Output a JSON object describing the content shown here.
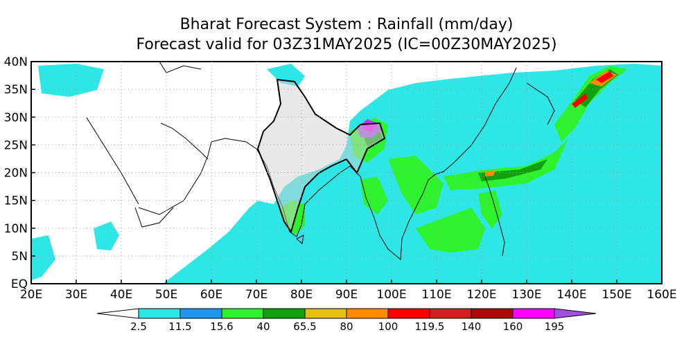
{
  "title": {
    "line1": "Bharat Forecast System : Rainfall (mm/day)",
    "line2": "Forecast valid for 03Z31MAY2025 (IC=00Z30MAY2025)"
  },
  "map": {
    "lon_range": [
      20,
      160
    ],
    "lat_range": [
      0,
      40
    ],
    "lon_ticks": [
      "20E",
      "30E",
      "40E",
      "50E",
      "60E",
      "70E",
      "80E",
      "90E",
      "100E",
      "110E",
      "120E",
      "130E",
      "140E",
      "150E",
      "160E"
    ],
    "lat_ticks": [
      "EQ",
      "5N",
      "10N",
      "15N",
      "20N",
      "25N",
      "30N",
      "35N",
      "40N"
    ]
  },
  "colorbar": {
    "labels": [
      "2.5",
      "11.5",
      "15.6",
      "40",
      "65.5",
      "80",
      "100",
      "119.5",
      "140",
      "160",
      "195"
    ],
    "colors": [
      "#ffffff",
      "#2ee6e6",
      "#1e96f0",
      "#2ef22e",
      "#10a010",
      "#e6be14",
      "#ff8c00",
      "#ff0000",
      "#d21e1e",
      "#aa0a0a",
      "#ff00ff",
      "#a050dc"
    ]
  }
}
